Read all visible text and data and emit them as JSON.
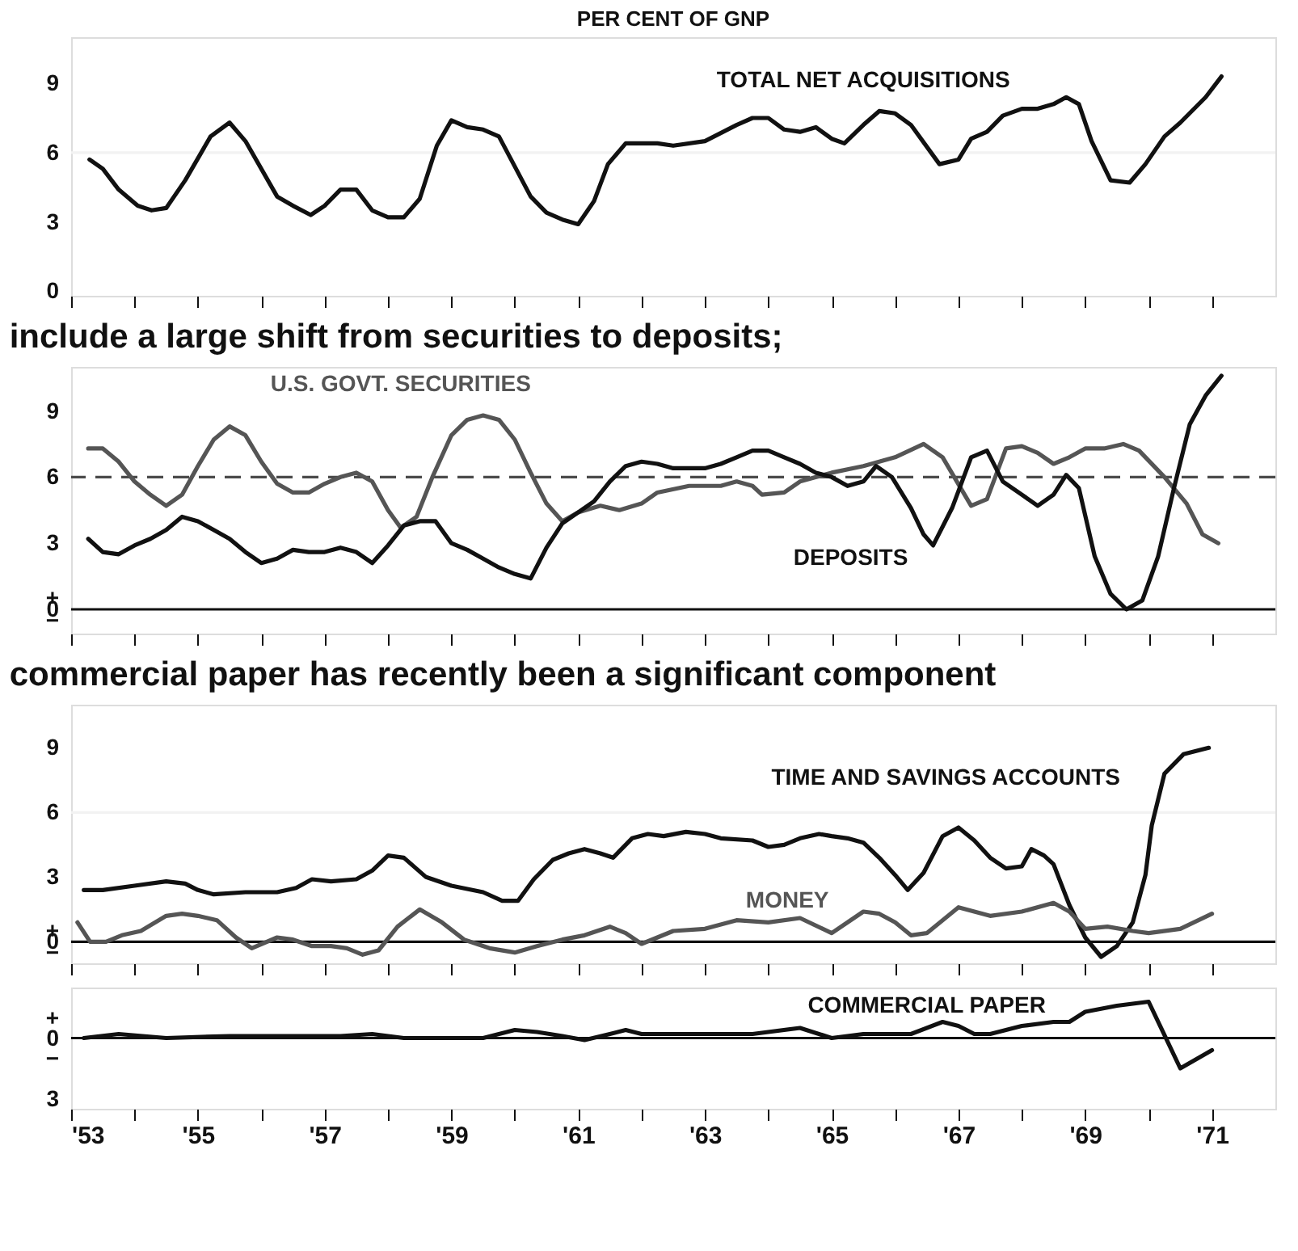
{
  "chart_data": [
    {
      "type": "line",
      "title": "PER CENT OF GNP",
      "xlim": [
        1953,
        1972
      ],
      "ylim": [
        -0.2,
        11
      ],
      "yticks": [
        0,
        3,
        6,
        9
      ],
      "tick_labels": "y",
      "xticks": [
        1953,
        1954,
        1955,
        1956,
        1957,
        1958,
        1959,
        1960,
        1961,
        1962,
        1963,
        1964,
        1965,
        1966,
        1967,
        1968,
        1969,
        1970,
        1971
      ],
      "ref_lines": [
        {
          "axis": "y",
          "value": 6,
          "color": "#f2f2f2",
          "line_style": "solid"
        }
      ],
      "series": [
        {
          "name": "TOTAL NET ACQUISITIONS",
          "color": "#111111",
          "x": [
            1953.29,
            1953.5,
            1953.75,
            1954.05,
            1954.27,
            1954.5,
            1954.8,
            1955.2,
            1955.5,
            1955.75,
            1956.25,
            1956.5,
            1956.78,
            1957.0,
            1957.25,
            1957.5,
            1957.75,
            1958.0,
            1958.25,
            1958.5,
            1958.77,
            1959.0,
            1959.25,
            1959.5,
            1959.75,
            1960.25,
            1960.5,
            1960.75,
            1961.0,
            1961.25,
            1961.47,
            1961.75,
            1962.25,
            1962.5,
            1963.0,
            1963.5,
            1963.75,
            1964.0,
            1964.25,
            1964.5,
            1964.75,
            1965.0,
            1965.2,
            1965.5,
            1965.75,
            1966.0,
            1966.25,
            1966.7,
            1967.0,
            1967.2,
            1967.45,
            1967.7,
            1968.0,
            1968.25,
            1968.5,
            1968.7,
            1968.9,
            1969.1,
            1969.4,
            1969.7,
            1969.95,
            1970.25,
            1970.5,
            1970.9,
            1971.15
          ],
          "values": [
            5.7,
            5.3,
            4.4,
            3.7,
            3.5,
            3.6,
            4.8,
            6.7,
            7.3,
            6.5,
            4.1,
            3.7,
            3.3,
            3.7,
            4.4,
            4.4,
            3.5,
            3.2,
            3.2,
            4.0,
            6.3,
            7.4,
            7.1,
            7.0,
            6.7,
            4.1,
            3.4,
            3.1,
            2.9,
            3.9,
            5.5,
            6.4,
            6.4,
            6.3,
            6.5,
            7.2,
            7.5,
            7.5,
            7.0,
            6.9,
            7.1,
            6.6,
            6.4,
            7.2,
            7.8,
            7.7,
            7.2,
            5.5,
            5.7,
            6.6,
            6.9,
            7.6,
            7.9,
            7.9,
            8.1,
            8.4,
            8.1,
            6.5,
            4.8,
            4.7,
            5.5,
            6.7,
            7.3,
            8.4,
            9.3
          ]
        }
      ]
    },
    {
      "type": "line",
      "title": "include a large shift from securities to deposits;",
      "xlim": [
        1953,
        1972
      ],
      "ylim": [
        -1.1,
        11
      ],
      "yticks": [
        {
          "value": -0.5,
          "label": "−"
        },
        0,
        {
          "value": 0.5,
          "label": "+"
        },
        3,
        6,
        9
      ],
      "tick_labels": "y",
      "xticks": [
        1953,
        1954,
        1955,
        1956,
        1957,
        1958,
        1959,
        1960,
        1961,
        1962,
        1963,
        1964,
        1965,
        1966,
        1967,
        1968,
        1969,
        1970,
        1971
      ],
      "ref_lines": [
        {
          "axis": "y",
          "value": 6,
          "color": "#4a4a4a",
          "line_style": "dashed"
        },
        {
          "axis": "y",
          "value": 0,
          "color": "#111111",
          "line_style": "solid"
        }
      ],
      "series": [
        {
          "name": "U.S. GOVT. SECURITIES",
          "color": "#555555",
          "x": [
            1953.27,
            1953.5,
            1953.75,
            1954.0,
            1954.25,
            1954.5,
            1954.75,
            1955.0,
            1955.25,
            1955.5,
            1955.75,
            1956.0,
            1956.25,
            1956.5,
            1956.75,
            1957.0,
            1957.25,
            1957.5,
            1957.75,
            1958.0,
            1958.2,
            1958.45,
            1958.7,
            1959.0,
            1959.25,
            1959.5,
            1959.75,
            1960.0,
            1960.25,
            1960.5,
            1960.75,
            1961.0,
            1961.35,
            1961.65,
            1962.0,
            1962.25,
            1962.75,
            1963.25,
            1963.5,
            1963.75,
            1963.9,
            1964.25,
            1964.5,
            1965.0,
            1965.5,
            1966.0,
            1966.45,
            1966.75,
            1967.2,
            1967.45,
            1967.75,
            1968.0,
            1968.25,
            1968.5,
            1968.75,
            1969.0,
            1969.3,
            1969.6,
            1969.85,
            1970.25,
            1970.6,
            1970.85,
            1971.1
          ],
          "values": [
            7.3,
            7.3,
            6.7,
            5.8,
            5.2,
            4.7,
            5.2,
            6.5,
            7.7,
            8.3,
            7.9,
            6.7,
            5.7,
            5.3,
            5.3,
            5.7,
            6.0,
            6.2,
            5.8,
            4.5,
            3.7,
            4.2,
            6.0,
            7.9,
            8.6,
            8.8,
            8.6,
            7.7,
            6.2,
            4.8,
            4.0,
            4.4,
            4.7,
            4.5,
            4.8,
            5.3,
            5.6,
            5.6,
            5.8,
            5.6,
            5.2,
            5.3,
            5.8,
            6.2,
            6.5,
            6.9,
            7.5,
            6.9,
            4.7,
            5.0,
            7.3,
            7.4,
            7.1,
            6.6,
            6.9,
            7.3,
            7.3,
            7.5,
            7.2,
            6.0,
            4.8,
            3.4,
            3.0
          ]
        },
        {
          "name": "DEPOSITS",
          "color": "#111111",
          "x": [
            1953.27,
            1953.5,
            1953.75,
            1954.0,
            1954.25,
            1954.5,
            1954.75,
            1955.0,
            1955.25,
            1955.5,
            1955.75,
            1956.0,
            1956.25,
            1956.5,
            1956.75,
            1957.0,
            1957.25,
            1957.5,
            1957.75,
            1958.0,
            1958.25,
            1958.5,
            1958.75,
            1959.0,
            1959.25,
            1959.5,
            1959.75,
            1960.0,
            1960.25,
            1960.5,
            1960.75,
            1961.25,
            1961.5,
            1961.75,
            1962.0,
            1962.25,
            1962.5,
            1963.0,
            1963.25,
            1963.5,
            1963.75,
            1964.0,
            1964.25,
            1964.5,
            1964.75,
            1965.0,
            1965.25,
            1965.5,
            1965.7,
            1965.95,
            1966.25,
            1966.45,
            1966.6,
            1966.9,
            1967.2,
            1967.45,
            1967.7,
            1968.0,
            1968.25,
            1968.5,
            1968.7,
            1968.9,
            1969.15,
            1969.4,
            1969.65,
            1969.9,
            1970.15,
            1970.4,
            1970.65,
            1970.9,
            1971.15
          ],
          "values": [
            3.2,
            2.6,
            2.5,
            2.9,
            3.2,
            3.6,
            4.2,
            4.0,
            3.6,
            3.2,
            2.6,
            2.1,
            2.3,
            2.7,
            2.6,
            2.6,
            2.8,
            2.6,
            2.1,
            2.9,
            3.8,
            4.0,
            4.0,
            3.0,
            2.7,
            2.3,
            1.9,
            1.6,
            1.4,
            2.8,
            3.9,
            4.9,
            5.8,
            6.5,
            6.7,
            6.6,
            6.4,
            6.4,
            6.6,
            6.9,
            7.2,
            7.2,
            6.9,
            6.6,
            6.2,
            6.0,
            5.6,
            5.8,
            6.5,
            6.0,
            4.6,
            3.4,
            2.9,
            4.6,
            6.9,
            7.2,
            5.8,
            5.2,
            4.7,
            5.2,
            6.1,
            5.5,
            2.4,
            0.7,
            0.0,
            0.4,
            2.4,
            5.5,
            8.4,
            9.7,
            10.6
          ]
        }
      ]
    },
    {
      "type": "line",
      "title": "commercial paper has recently been a significant component",
      "xlim": [
        1953,
        1972
      ],
      "ylim": [
        -1,
        11
      ],
      "yticks": [
        {
          "value": -0.5,
          "label": "−"
        },
        0,
        {
          "value": 0.5,
          "label": "+"
        },
        3,
        6,
        9
      ],
      "tick_labels": "y",
      "xticks": [
        1953,
        1954,
        1955,
        1956,
        1957,
        1958,
        1959,
        1960,
        1961,
        1962,
        1963,
        1964,
        1965,
        1966,
        1967,
        1968,
        1969,
        1970,
        1971
      ],
      "ref_lines": [
        {
          "axis": "y",
          "value": 6,
          "color": "#f2f2f2",
          "line_style": "solid"
        },
        {
          "axis": "y",
          "value": 0,
          "color": "#111111",
          "line_style": "solid"
        }
      ],
      "series": [
        {
          "name": "TIME AND SAVINGS ACCOUNTS",
          "color": "#111111",
          "x": [
            1953.2,
            1953.5,
            1954.0,
            1954.5,
            1954.8,
            1955.0,
            1955.25,
            1955.75,
            1956.25,
            1956.55,
            1956.8,
            1957.1,
            1957.5,
            1957.75,
            1958.0,
            1958.25,
            1958.6,
            1959.0,
            1959.5,
            1959.8,
            1960.05,
            1960.3,
            1960.6,
            1960.85,
            1961.1,
            1961.35,
            1961.55,
            1961.85,
            1962.1,
            1962.35,
            1962.7,
            1963.0,
            1963.25,
            1963.75,
            1964.0,
            1964.25,
            1964.5,
            1964.8,
            1965.0,
            1965.25,
            1965.5,
            1965.75,
            1966.0,
            1966.2,
            1966.45,
            1966.75,
            1967.0,
            1967.25,
            1967.5,
            1967.75,
            1968.0,
            1968.15,
            1968.35,
            1968.5,
            1968.75,
            1969.0,
            1969.25,
            1969.5,
            1969.75,
            1969.95,
            1970.05,
            1970.25,
            1970.55,
            1970.95
          ],
          "values": [
            2.4,
            2.4,
            2.6,
            2.8,
            2.7,
            2.4,
            2.2,
            2.3,
            2.3,
            2.5,
            2.9,
            2.8,
            2.9,
            3.3,
            4.0,
            3.9,
            3.0,
            2.6,
            2.3,
            1.9,
            1.9,
            2.9,
            3.8,
            4.1,
            4.3,
            4.1,
            3.9,
            4.8,
            5.0,
            4.9,
            5.1,
            5.0,
            4.8,
            4.7,
            4.4,
            4.5,
            4.8,
            5.0,
            4.9,
            4.8,
            4.6,
            3.9,
            3.1,
            2.4,
            3.2,
            4.9,
            5.3,
            4.7,
            3.9,
            3.4,
            3.5,
            4.3,
            4.0,
            3.6,
            1.7,
            0.2,
            -0.7,
            -0.2,
            0.9,
            3.1,
            5.4,
            7.8,
            8.7,
            9.0
          ]
        },
        {
          "name": "MONEY",
          "color": "#555555",
          "x": [
            1953.1,
            1953.3,
            1953.55,
            1953.8,
            1954.1,
            1954.5,
            1954.75,
            1955.0,
            1955.3,
            1955.6,
            1955.85,
            1956.25,
            1956.5,
            1956.8,
            1957.1,
            1957.35,
            1957.6,
            1957.85,
            1958.15,
            1958.5,
            1958.85,
            1959.2,
            1959.6,
            1960.0,
            1960.35,
            1960.75,
            1961.1,
            1961.5,
            1961.75,
            1962.0,
            1962.25,
            1962.5,
            1963.0,
            1963.5,
            1964.0,
            1964.5,
            1965.0,
            1965.5,
            1965.75,
            1966.0,
            1966.25,
            1966.5,
            1967.0,
            1967.5,
            1968.0,
            1968.5,
            1968.75,
            1969.0,
            1969.35,
            1969.75,
            1970.0,
            1970.5,
            1971.0
          ],
          "values": [
            0.9,
            0.0,
            0.0,
            0.3,
            0.5,
            1.2,
            1.3,
            1.2,
            1.0,
            0.2,
            -0.3,
            0.2,
            0.1,
            -0.2,
            -0.2,
            -0.3,
            -0.6,
            -0.4,
            0.7,
            1.5,
            0.9,
            0.1,
            -0.3,
            -0.5,
            -0.2,
            0.1,
            0.3,
            0.7,
            0.4,
            -0.1,
            0.2,
            0.5,
            0.6,
            1.0,
            0.9,
            1.1,
            0.4,
            1.4,
            1.3,
            0.9,
            0.3,
            0.4,
            1.6,
            1.2,
            1.4,
            1.8,
            1.4,
            0.6,
            0.7,
            0.5,
            0.4,
            0.6,
            1.3
          ]
        }
      ]
    },
    {
      "type": "line",
      "xlim": [
        1953,
        1972
      ],
      "ylim": [
        -3.5,
        2.5
      ],
      "yticks": [
        {
          "value": -3,
          "label": "3"
        },
        {
          "value": -1,
          "label": "−"
        },
        0,
        {
          "value": 1,
          "label": "+"
        }
      ],
      "xticks": [
        {
          "value": 1953,
          "label": "'53"
        },
        {
          "value": 1954,
          "label": null
        },
        {
          "value": 1955,
          "label": "'55"
        },
        {
          "value": 1956,
          "label": null
        },
        {
          "value": 1957,
          "label": "'57"
        },
        {
          "value": 1958,
          "label": null
        },
        {
          "value": 1959,
          "label": "'59"
        },
        {
          "value": 1960,
          "label": null
        },
        {
          "value": 1961,
          "label": "'61"
        },
        {
          "value": 1962,
          "label": null
        },
        {
          "value": 1963,
          "label": "'63"
        },
        {
          "value": 1964,
          "label": null
        },
        {
          "value": 1965,
          "label": "'65"
        },
        {
          "value": 1966,
          "label": null
        },
        {
          "value": 1967,
          "label": "'67"
        },
        {
          "value": 1968,
          "label": null
        },
        {
          "value": 1969,
          "label": "'69"
        },
        {
          "value": 1970,
          "label": null
        },
        {
          "value": 1971,
          "label": "'71"
        }
      ],
      "ref_lines": [
        {
          "axis": "y",
          "value": 0,
          "color": "#111111",
          "line_style": "solid"
        }
      ],
      "series": [
        {
          "name": "COMMERCIAL PAPER",
          "color": "#111111",
          "x": [
            1953.2,
            1953.75,
            1954.5,
            1955.5,
            1956.25,
            1957.25,
            1957.75,
            1958.25,
            1959.25,
            1959.5,
            1960.0,
            1960.35,
            1960.75,
            1961.1,
            1961.5,
            1961.75,
            1962.0,
            1962.5,
            1963.0,
            1963.5,
            1963.75,
            1964.5,
            1965.0,
            1965.5,
            1966.0,
            1966.25,
            1966.75,
            1967.0,
            1967.25,
            1967.5,
            1968.0,
            1968.5,
            1968.75,
            1969.0,
            1969.5,
            1970.0,
            1970.5,
            1971.0
          ],
          "values": [
            0.0,
            0.2,
            0.0,
            0.1,
            0.1,
            0.1,
            0.2,
            0.0,
            0.0,
            0.0,
            0.4,
            0.3,
            0.1,
            -0.1,
            0.2,
            0.4,
            0.2,
            0.2,
            0.2,
            0.2,
            0.2,
            0.5,
            0.0,
            0.2,
            0.2,
            0.2,
            0.8,
            0.6,
            0.2,
            0.2,
            0.6,
            0.8,
            0.8,
            1.3,
            1.6,
            1.8,
            -1.5,
            -0.6
          ]
        }
      ]
    }
  ]
}
